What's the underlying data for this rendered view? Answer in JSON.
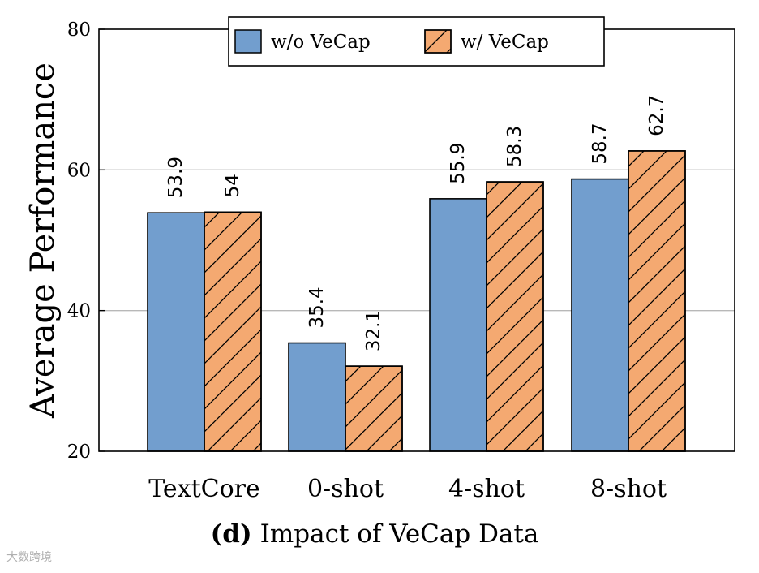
{
  "chart_data": {
    "type": "bar",
    "caption_prefix": "(d)",
    "caption_text": "Impact of VeCap Data",
    "ylabel": "Average Performance",
    "xlabel": "",
    "ylim": [
      20,
      80
    ],
    "yticks": [
      20,
      40,
      60,
      80
    ],
    "grid": true,
    "legend_position": "top-center",
    "categories": [
      "TextCore",
      "0-shot",
      "4-shot",
      "8-shot"
    ],
    "series": [
      {
        "name": "w/o VeCap",
        "values": [
          53.9,
          35.4,
          55.9,
          58.7
        ],
        "labels": [
          "53.9",
          "35.4",
          "55.9",
          "58.7"
        ],
        "color": "#729ECE",
        "hatch": false
      },
      {
        "name": "w/ VeCap",
        "values": [
          54,
          32.1,
          58.3,
          62.7
        ],
        "labels": [
          "54",
          "32.1",
          "58.3",
          "62.7"
        ],
        "color": "#F4A971",
        "hatch": true
      }
    ]
  },
  "watermark": "大数跨境"
}
